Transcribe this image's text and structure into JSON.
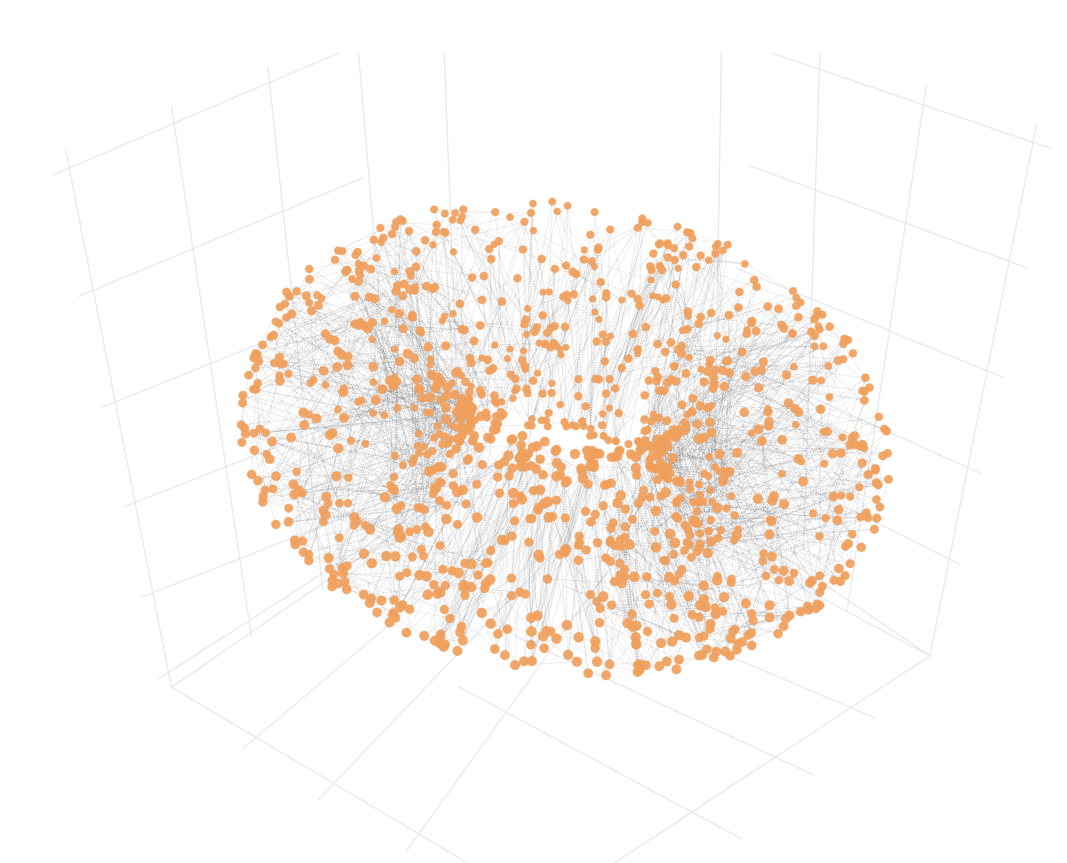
{
  "chart_data": {
    "type": "scatter",
    "subtype": "3d-network-graph",
    "title": "",
    "xlabel": "",
    "ylabel": "",
    "zlabel": "",
    "grid": true,
    "legend": "none",
    "shape": "torus",
    "num_nodes": 1200,
    "edges_per_node": 2,
    "colors": {
      "node": "#f0a05c",
      "edge": "#555555",
      "grid": "#dfe3ef",
      "background": "#ffffff"
    }
  }
}
